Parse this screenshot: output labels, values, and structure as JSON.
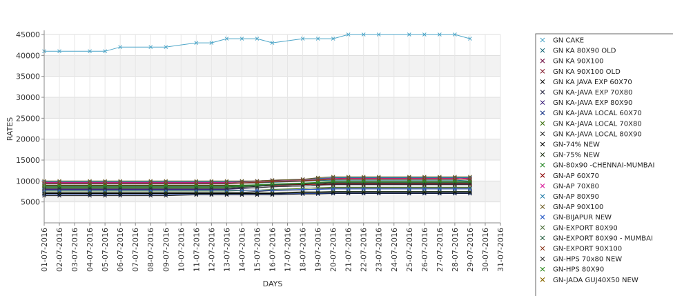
{
  "chart_data": {
    "type": "line",
    "xlabel": "DAYS",
    "ylabel": "RATES",
    "ylim": [
      0,
      45000
    ],
    "yticks": [
      5000,
      10000,
      15000,
      20000,
      25000,
      30000,
      35000,
      40000,
      45000
    ],
    "grid": true,
    "legend_position": "right",
    "categories": [
      "01-07-2016",
      "02-07-2016",
      "03-07-2016",
      "04-07-2016",
      "05-07-2016",
      "06-07-2016",
      "07-07-2016",
      "08-07-2016",
      "09-07-2016",
      "10-07-2016",
      "11-07-2016",
      "12-07-2016",
      "13-07-2016",
      "14-07-2016",
      "15-07-2016",
      "16-07-2016",
      "17-07-2016",
      "18-07-2016",
      "19-07-2016",
      "20-07-2016",
      "21-07-2016",
      "22-07-2016",
      "23-07-2016",
      "24-07-2016",
      "25-07-2016",
      "26-07-2016",
      "27-07-2016",
      "28-07-2016",
      "29-07-2016",
      "30-07-2016",
      "31-07-2016"
    ],
    "series": [
      {
        "name": "GN CAKE",
        "color": "#4ea6c8",
        "values": [
          41000,
          41000,
          null,
          41000,
          41000,
          42000,
          null,
          42000,
          42000,
          null,
          43000,
          43000,
          44000,
          44000,
          44000,
          43000,
          null,
          44000,
          44000,
          44000,
          45000,
          45000,
          45000,
          null,
          45000,
          45000,
          45000,
          45000,
          44000,
          null,
          null
        ]
      },
      {
        "name": "GN KA 80X90 OLD",
        "color": "#1f6b7a",
        "values": [
          9300,
          9300,
          null,
          9300,
          9300,
          9300,
          null,
          9300,
          9300,
          null,
          9300,
          9300,
          9300,
          9500,
          9500,
          9700,
          null,
          9900,
          10100,
          10200,
          10200,
          10200,
          10200,
          null,
          10200,
          10200,
          10200,
          10200,
          10000,
          null,
          null
        ]
      },
      {
        "name": "GN KA 90X100",
        "color": "#7a1f4f",
        "values": [
          9700,
          9700,
          null,
          9700,
          9700,
          9700,
          null,
          9700,
          9700,
          null,
          9700,
          9700,
          9700,
          9800,
          9900,
          10100,
          null,
          10300,
          10500,
          10700,
          10800,
          10800,
          10800,
          null,
          10800,
          10800,
          10800,
          10800,
          10500,
          null,
          null
        ]
      },
      {
        "name": "GN KA 90X100 OLD",
        "color": "#8b2a3a",
        "values": [
          9500,
          9500,
          null,
          9500,
          9500,
          9500,
          null,
          9500,
          9500,
          null,
          9500,
          9500,
          9500,
          9600,
          9700,
          9900,
          null,
          10100,
          10300,
          10500,
          10600,
          10600,
          10600,
          null,
          10600,
          10600,
          10600,
          10600,
          10300,
          null,
          null
        ]
      },
      {
        "name": "GN KA JAVA EXP 60X70",
        "color": "#111111",
        "values": [
          6500,
          6500,
          null,
          6500,
          6500,
          6500,
          null,
          6500,
          6500,
          null,
          6700,
          6700,
          6700,
          6700,
          6700,
          6700,
          null,
          6900,
          6900,
          7000,
          7000,
          7000,
          7000,
          null,
          7000,
          7000,
          7000,
          7000,
          7000,
          null,
          null
        ]
      },
      {
        "name": "GN KA-JAVA EXP 70X80",
        "color": "#2a2a44",
        "values": [
          7300,
          7300,
          null,
          7300,
          7300,
          7300,
          null,
          7300,
          7300,
          null,
          7300,
          7300,
          7300,
          7300,
          7500,
          7700,
          null,
          7900,
          8100,
          8300,
          8300,
          8300,
          8300,
          null,
          8300,
          8300,
          8300,
          8300,
          8300,
          null,
          null
        ]
      },
      {
        "name": "GN KA-JAVA EXP 80X90",
        "color": "#3b1f7a",
        "values": [
          8000,
          8000,
          null,
          8000,
          8000,
          8000,
          null,
          8000,
          8000,
          null,
          8000,
          8000,
          8000,
          8200,
          8400,
          8600,
          null,
          8800,
          9000,
          9200,
          9200,
          9200,
          9200,
          null,
          9200,
          9200,
          9200,
          9200,
          9200,
          null,
          null
        ]
      },
      {
        "name": "GN KA-JAVA LOCAL 60X70",
        "color": "#1f3b8b",
        "values": [
          6800,
          6800,
          null,
          6800,
          6800,
          6800,
          null,
          6800,
          6800,
          null,
          6900,
          6900,
          6900,
          6900,
          6900,
          6900,
          null,
          7000,
          7000,
          7100,
          7100,
          7100,
          7100,
          null,
          7100,
          7100,
          7100,
          7100,
          7100,
          null,
          null
        ]
      },
      {
        "name": "GN KA-JAVA LOCAL 70X80",
        "color": "#4a7a1f",
        "values": [
          7600,
          7600,
          null,
          7600,
          7600,
          7600,
          null,
          7600,
          7600,
          null,
          7600,
          7600,
          7600,
          7700,
          7800,
          8000,
          null,
          8200,
          8400,
          8500,
          8500,
          8500,
          8500,
          null,
          8500,
          8500,
          8500,
          8500,
          8500,
          null,
          null
        ]
      },
      {
        "name": "GN KA-JAVA LOCAL 80X90",
        "color": "#222222",
        "values": [
          8300,
          8300,
          null,
          8300,
          8300,
          8300,
          null,
          8300,
          8300,
          null,
          8300,
          8300,
          8300,
          8500,
          8700,
          8900,
          null,
          9100,
          9300,
          9500,
          9500,
          9500,
          9500,
          null,
          9500,
          9500,
          9500,
          9500,
          9500,
          null,
          null
        ]
      },
      {
        "name": "GN-74% NEW",
        "color": "#000000",
        "values": [
          7000,
          7000,
          null,
          7000,
          7000,
          7000,
          null,
          7000,
          7000,
          null,
          7000,
          7000,
          7000,
          7000,
          7000,
          7000,
          null,
          7200,
          7200,
          7300,
          7300,
          7300,
          7300,
          null,
          7300,
          7300,
          7300,
          7300,
          7300,
          null,
          null
        ]
      },
      {
        "name": "GN-75% NEW",
        "color": "#2a3a1f",
        "values": [
          7200,
          7200,
          null,
          7200,
          7200,
          7200,
          null,
          7200,
          7200,
          null,
          7200,
          7200,
          7200,
          7200,
          7200,
          7200,
          null,
          7400,
          7400,
          7500,
          7500,
          7500,
          7500,
          null,
          7500,
          7500,
          7500,
          7500,
          7500,
          null,
          null
        ]
      },
      {
        "name": "GN-80x90 -CHENNAI-MUMBAI",
        "color": "#2e8b2e",
        "values": [
          8500,
          8500,
          null,
          8500,
          8500,
          8500,
          null,
          8500,
          8500,
          null,
          8500,
          8500,
          8500,
          8700,
          8900,
          9100,
          null,
          9300,
          9500,
          9700,
          9700,
          9700,
          9700,
          null,
          9700,
          9700,
          9700,
          9700,
          9700,
          null,
          null
        ]
      },
      {
        "name": "GN-AP 60X70",
        "color": "#8b0000",
        "values": [
          9000,
          9000,
          null,
          9000,
          9000,
          9000,
          null,
          9000,
          9000,
          null,
          9000,
          9000,
          9000,
          9000,
          9000,
          9000,
          null,
          9200,
          9200,
          9300,
          9300,
          9300,
          9300,
          null,
          9300,
          9300,
          9300,
          9300,
          9300,
          null,
          null
        ]
      },
      {
        "name": "GN-AP 70X80",
        "color": "#d81b9a",
        "values": [
          9600,
          9600,
          null,
          9600,
          9600,
          9600,
          null,
          9600,
          9600,
          null,
          9600,
          9600,
          9600,
          9900,
          10000,
          10200,
          null,
          10400,
          10600,
          10700,
          10700,
          10700,
          10700,
          null,
          10700,
          10700,
          10700,
          10700,
          10700,
          null,
          null
        ]
      },
      {
        "name": "GN-AP 80X90",
        "color": "#1f7aa8",
        "values": [
          9800,
          9800,
          null,
          9800,
          9800,
          9800,
          null,
          9800,
          9800,
          null,
          9800,
          9800,
          9800,
          9900,
          10000,
          10200,
          null,
          10400,
          10600,
          10800,
          10800,
          10800,
          10800,
          null,
          10800,
          10800,
          10800,
          10800,
          10800,
          null,
          null
        ]
      },
      {
        "name": "GN-AP 90X100",
        "color": "#6b5a1f",
        "values": [
          10000,
          10000,
          null,
          10000,
          10000,
          10000,
          null,
          10000,
          10000,
          null,
          10000,
          10000,
          10000,
          10000,
          10000,
          10200,
          null,
          10400,
          10800,
          11000,
          11000,
          11000,
          11000,
          null,
          11000,
          11000,
          11000,
          11000,
          11000,
          null,
          null
        ]
      },
      {
        "name": "GN-BIJAPUR NEW",
        "color": "#2e5fc8",
        "values": [
          7800,
          7800,
          null,
          7800,
          7800,
          7800,
          null,
          7800,
          7800,
          null,
          7800,
          7800,
          7800,
          7800,
          7800,
          7800,
          null,
          8000,
          8000,
          8100,
          8100,
          8100,
          8100,
          null,
          8100,
          8100,
          8100,
          8100,
          8100,
          null,
          null
        ]
      },
      {
        "name": "GN-EXPORT 80X90",
        "color": "#5a7a4a",
        "values": [
          8800,
          8800,
          null,
          8800,
          8800,
          8800,
          null,
          8800,
          8800,
          null,
          8800,
          8800,
          8800,
          8900,
          9000,
          9200,
          null,
          9400,
          9600,
          9800,
          9800,
          9800,
          9800,
          null,
          9800,
          9800,
          9800,
          9800,
          9800,
          null,
          null
        ]
      },
      {
        "name": "GN-EXPORT 80X90 - MUMBAI",
        "color": "#1f5a3a",
        "values": [
          8700,
          8700,
          null,
          8700,
          8700,
          8700,
          null,
          8700,
          8700,
          null,
          8700,
          8700,
          8700,
          8800,
          8900,
          9100,
          null,
          9300,
          9500,
          9700,
          9700,
          9700,
          9700,
          null,
          9700,
          9700,
          9700,
          9700,
          9700,
          null,
          null
        ]
      },
      {
        "name": "GN-EXPORT 90X100",
        "color": "#8b3a1f",
        "values": [
          9400,
          9400,
          null,
          9400,
          9400,
          9400,
          null,
          9400,
          9400,
          null,
          9400,
          9400,
          9400,
          9500,
          9600,
          9800,
          null,
          10000,
          10200,
          10400,
          10400,
          10400,
          10400,
          null,
          10400,
          10400,
          10400,
          10400,
          10400,
          null,
          null
        ]
      },
      {
        "name": "GN-HPS 70x80 NEW",
        "color": "#333333",
        "values": [
          8200,
          8200,
          null,
          8200,
          8200,
          8200,
          null,
          8200,
          8200,
          null,
          8200,
          8200,
          8200,
          8300,
          8400,
          8600,
          null,
          8800,
          9000,
          9100,
          9100,
          9100,
          9100,
          null,
          9100,
          9100,
          9100,
          9100,
          9100,
          null,
          null
        ]
      },
      {
        "name": "GN-HPS 80X90",
        "color": "#2e8b1f",
        "values": [
          8900,
          8900,
          null,
          8900,
          8900,
          8900,
          null,
          8900,
          8900,
          null,
          8900,
          8900,
          8900,
          9000,
          9100,
          9300,
          null,
          9500,
          9700,
          9900,
          9900,
          9900,
          9900,
          null,
          9900,
          9900,
          9900,
          9900,
          9900,
          null,
          null
        ]
      },
      {
        "name": "GN-JADA GUJ40X50 NEW",
        "color": "#8b6a00",
        "values": [
          null,
          null,
          null,
          null,
          null,
          null,
          null,
          null,
          null,
          null,
          null,
          null,
          null,
          null,
          null,
          null,
          null,
          null,
          null,
          null,
          null,
          null,
          null,
          null,
          null,
          null,
          null,
          null,
          null,
          null,
          null
        ]
      }
    ]
  }
}
